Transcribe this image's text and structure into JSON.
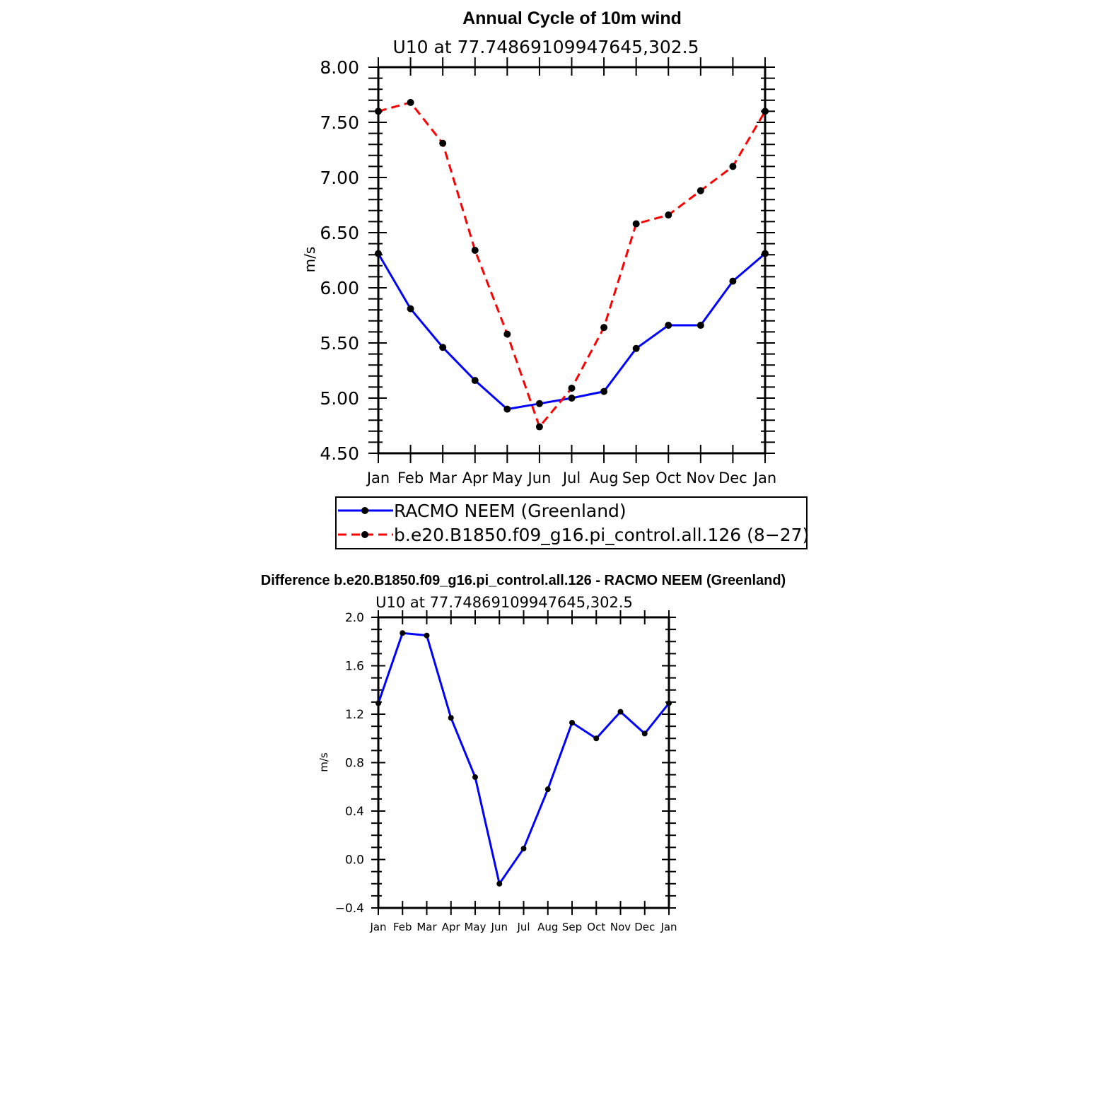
{
  "chart_data": [
    {
      "type": "line",
      "title": "Annual Cycle of 10m wind",
      "subtitle": "U10 at 77.74869109947645,302.5",
      "ylabel": "m/s",
      "xlabel": "",
      "ylim": [
        4.5,
        8.0
      ],
      "yticks": [
        4.5,
        5.0,
        5.5,
        6.0,
        6.5,
        7.0,
        7.5,
        8.0
      ],
      "ytick_labels": [
        "4.50",
        "5.00",
        "5.50",
        "6.00",
        "6.50",
        "7.00",
        "7.50",
        "8.00"
      ],
      "categories": [
        "Jan",
        "Feb",
        "Mar",
        "Apr",
        "May",
        "Jun",
        "Jul",
        "Aug",
        "Sep",
        "Oct",
        "Nov",
        "Dec",
        "Jan"
      ],
      "series": [
        {
          "name": "RACMO NEEM (Greenland)",
          "color": "#0000ff",
          "dash": "solid",
          "values": [
            6.31,
            5.81,
            5.46,
            5.16,
            4.9,
            4.95,
            5.0,
            5.06,
            5.45,
            5.66,
            5.66,
            6.06,
            6.31
          ]
        },
        {
          "name": "b.e20.B1850.f09_g16.pi_control.all.126 (8−27)",
          "color": "#ff0000",
          "dash": "dashed",
          "values": [
            7.6,
            7.68,
            7.31,
            6.34,
            5.58,
            4.74,
            5.09,
            5.64,
            6.58,
            6.66,
            6.88,
            7.1,
            7.6
          ]
        }
      ],
      "legend": "bottom"
    },
    {
      "type": "line",
      "title": "Difference b.e20.B1850.f09_g16.pi_control.all.126 - RACMO NEEM (Greenland)",
      "subtitle": "U10 at 77.74869109947645,302.5",
      "ylabel": "m/s",
      "xlabel": "",
      "ylim": [
        -0.4,
        2.0
      ],
      "yticks": [
        -0.4,
        0.0,
        0.4,
        0.8,
        1.2,
        1.6,
        2.0
      ],
      "ytick_labels": [
        "−0.4",
        "0.0",
        "0.4",
        "0.8",
        "1.2",
        "1.6",
        "2.0"
      ],
      "categories": [
        "Jan",
        "Feb",
        "Mar",
        "Apr",
        "May",
        "Jun",
        "Jul",
        "Aug",
        "Sep",
        "Oct",
        "Nov",
        "Dec",
        "Jan"
      ],
      "series": [
        {
          "name": "Difference",
          "color": "#0000ff",
          "dash": "solid",
          "values": [
            1.29,
            1.87,
            1.85,
            1.17,
            0.68,
            -0.2,
            0.09,
            0.58,
            1.13,
            1.0,
            1.22,
            1.04,
            1.29
          ]
        }
      ]
    }
  ]
}
